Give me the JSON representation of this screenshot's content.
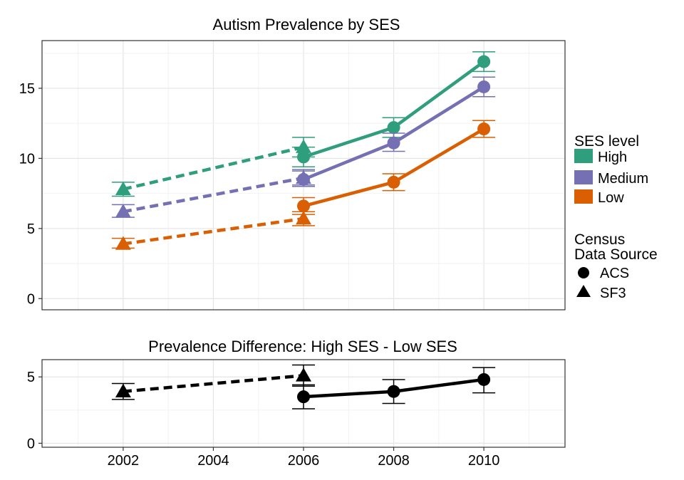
{
  "colors": {
    "high": "#2e9e7d",
    "medium": "#7570b3",
    "low": "#d95f02",
    "difference": "#000000",
    "grid": "#e5e5e5",
    "panel_border": "#333333"
  },
  "chart_data": [
    {
      "type": "line",
      "title": "Autism Prevalence by SES",
      "xlabel": "",
      "ylabel": "",
      "xlim": [
        2000.2,
        2011.8
      ],
      "ylim": [
        -0.8,
        18.4
      ],
      "yticks": [
        0,
        5,
        10,
        15
      ],
      "xticks": [
        2002,
        2004,
        2006,
        2008,
        2010
      ],
      "grid": true,
      "legend_position": "right",
      "notes": "Dashed segments connect SF3 points; solid segments connect ACS points. Error bars shown on each point.",
      "series": [
        {
          "name": "High",
          "color_key": "high",
          "points": [
            {
              "x": 2002,
              "y": 7.8,
              "lo": 7.3,
              "hi": 8.3,
              "source": "SF3"
            },
            {
              "x": 2006,
              "y": 10.8,
              "lo": 10.1,
              "hi": 11.5,
              "source": "SF3"
            },
            {
              "x": 2006,
              "y": 10.1,
              "lo": 9.4,
              "hi": 10.8,
              "source": "ACS"
            },
            {
              "x": 2008,
              "y": 12.2,
              "lo": 11.5,
              "hi": 12.9,
              "source": "ACS"
            },
            {
              "x": 2010,
              "y": 16.9,
              "lo": 16.2,
              "hi": 17.6,
              "source": "ACS"
            }
          ]
        },
        {
          "name": "Medium",
          "color_key": "medium",
          "points": [
            {
              "x": 2002,
              "y": 6.2,
              "lo": 5.8,
              "hi": 6.7,
              "source": "SF3"
            },
            {
              "x": 2006,
              "y": 8.6,
              "lo": 8.1,
              "hi": 9.2,
              "source": "SF3"
            },
            {
              "x": 2006,
              "y": 8.5,
              "lo": 8.0,
              "hi": 9.1,
              "source": "ACS"
            },
            {
              "x": 2008,
              "y": 11.1,
              "lo": 10.5,
              "hi": 11.8,
              "source": "ACS"
            },
            {
              "x": 2010,
              "y": 15.1,
              "lo": 14.4,
              "hi": 15.8,
              "source": "ACS"
            }
          ]
        },
        {
          "name": "Low",
          "color_key": "low",
          "points": [
            {
              "x": 2002,
              "y": 3.9,
              "lo": 3.6,
              "hi": 4.3,
              "source": "SF3"
            },
            {
              "x": 2006,
              "y": 5.7,
              "lo": 5.2,
              "hi": 6.2,
              "source": "SF3"
            },
            {
              "x": 2006,
              "y": 6.6,
              "lo": 6.0,
              "hi": 7.2,
              "source": "ACS"
            },
            {
              "x": 2008,
              "y": 8.3,
              "lo": 7.7,
              "hi": 8.9,
              "source": "ACS"
            },
            {
              "x": 2010,
              "y": 12.1,
              "lo": 11.5,
              "hi": 12.7,
              "source": "ACS"
            }
          ]
        }
      ],
      "legend": {
        "ses_title": "SES level",
        "ses_items": [
          "High",
          "Medium",
          "Low"
        ],
        "source_title_line1": "Census",
        "source_title_line2": "Data Source",
        "source_items": [
          "ACS",
          "SF3"
        ]
      }
    },
    {
      "type": "line",
      "title": "Prevalence Difference: High SES - Low SES",
      "xlabel": "",
      "ylabel": "",
      "xlim": [
        2000.2,
        2011.8
      ],
      "ylim": [
        -0.3,
        6.3
      ],
      "yticks": [
        0,
        5
      ],
      "xticks": [
        2002,
        2004,
        2006,
        2008,
        2010
      ],
      "grid": true,
      "series": [
        {
          "name": "",
          "color_key": "difference",
          "points": [
            {
              "x": 2002,
              "y": 3.9,
              "lo": 3.3,
              "hi": 4.5,
              "source": "SF3"
            },
            {
              "x": 2006,
              "y": 5.1,
              "lo": 4.3,
              "hi": 5.9,
              "source": "SF3"
            },
            {
              "x": 2006,
              "y": 3.5,
              "lo": 2.6,
              "hi": 4.4,
              "source": "ACS"
            },
            {
              "x": 2008,
              "y": 3.9,
              "lo": 3.0,
              "hi": 4.8,
              "source": "ACS"
            },
            {
              "x": 2010,
              "y": 4.8,
              "lo": 3.8,
              "hi": 5.7,
              "source": "ACS"
            }
          ]
        }
      ]
    }
  ]
}
